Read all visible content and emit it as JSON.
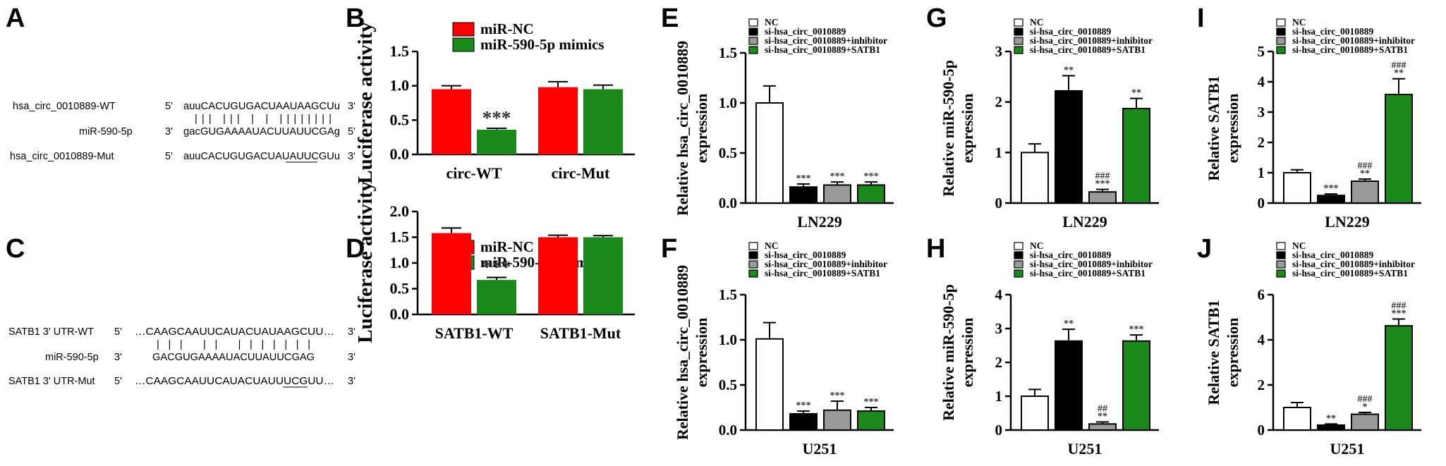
{
  "colors": {
    "red": "#ff0000",
    "green": "#1a8a1a",
    "black": "#000000",
    "gray": "#9a9a9a",
    "white": "#ffffff"
  },
  "panel_letters": [
    "A",
    "B",
    "C",
    "D",
    "E",
    "F",
    "G",
    "H",
    "I",
    "J"
  ],
  "seqA": {
    "rows": [
      {
        "label": "hsa_circ_0010889-WT",
        "p5": "5'",
        "seq": "auuCACUGUGACUAAUAAGCUu",
        "p3": "3'"
      },
      {
        "label": "",
        "p5": "",
        "seq": "|||  |||   |   |   ||||||||",
        "p3": ""
      },
      {
        "label": "miR-590-5p",
        "p5": "3'",
        "seq": "gacGUGAAAAUACUUAUUCGAg",
        "p3": "5'"
      },
      {
        "label": "hsa_circ_0010889-Mut",
        "p5": "5'",
        "seq": "auuCACUGUGACUAUAUUCGUu",
        "p3": "3'"
      }
    ]
  },
  "seqC": {
    "rows": [
      {
        "label": "SATB1 3' UTR-WT",
        "p5": "5'",
        "seq": "…CAAGCAAUUCAUACUAUAAGCUU…",
        "p3": "3'"
      },
      {
        "label": "",
        "p5": "",
        "seq": "|||   ||     |||||||",
        "p3": ""
      },
      {
        "label": "miR-590-5p",
        "p5": "3'",
        "seq": "GACGUGAAAAUACUUAUUCGAG",
        "p3": "5'"
      },
      {
        "label": "SATB1 3' UTR-Mut",
        "p5": "5'",
        "seq": "…CAAGCAAUUCAUACUAUUUCGUU…",
        "p3": "3'"
      }
    ]
  },
  "chart_data": [
    {
      "panel": "B",
      "type": "bar",
      "ylabel": "Luciferase activity",
      "categories": [
        "circ-WT",
        "circ-Mut"
      ],
      "ylim": [
        0,
        1.5
      ],
      "yticks": [
        "0.0",
        "0.5",
        "1.0",
        "1.5"
      ],
      "legend": [
        "miR-NC",
        "miR-590-5p mimics"
      ],
      "series": [
        {
          "name": "miR-NC",
          "values": [
            0.95,
            0.98
          ],
          "errors": [
            0.05,
            0.08
          ]
        },
        {
          "name": "miR-590-5p mimics",
          "values": [
            0.36,
            0.95
          ],
          "errors": [
            0.02,
            0.06
          ]
        }
      ],
      "annotations": [
        {
          "category": "circ-WT",
          "series": 1,
          "text": "***"
        }
      ]
    },
    {
      "panel": "D",
      "type": "bar",
      "ylabel": "Luciferase activity",
      "categories": [
        "SATB1-WT",
        "SATB1-Mut"
      ],
      "ylim": [
        0,
        2.0
      ],
      "yticks": [
        "0.0",
        "0.5",
        "1.0",
        "1.5",
        "2.0"
      ],
      "legend": [
        "miR-NC",
        "miR-590-5p mimics"
      ],
      "series": [
        {
          "name": "miR-NC",
          "values": [
            1.58,
            1.5
          ],
          "errors": [
            0.1,
            0.04
          ]
        },
        {
          "name": "miR-590-5p mimics",
          "values": [
            0.67,
            1.5
          ],
          "errors": [
            0.05,
            0.03
          ]
        }
      ],
      "annotations": [
        {
          "category": "SATB1-WT",
          "series": 1,
          "text": "***"
        }
      ]
    },
    {
      "panel": "E",
      "type": "bar",
      "ylabel_lines": [
        "Relative hsa_circ_0010889",
        "expression"
      ],
      "xlabel": "LN229",
      "ylim": [
        0,
        1.5
      ],
      "yticks": [
        "0.0",
        "0.5",
        "1.0",
        "1.5"
      ],
      "legend": [
        "NC",
        "si-hsa_circ_0010889",
        "si-hsa_circ_0010889+inhibitor",
        "si-hsa_circ_0010889+SATB1"
      ],
      "values": [
        1.0,
        0.16,
        0.18,
        0.18
      ],
      "errors": [
        0.17,
        0.03,
        0.03,
        0.03
      ],
      "annotations": [
        "",
        "***",
        "***",
        "***"
      ]
    },
    {
      "panel": "F",
      "type": "bar",
      "ylabel_lines": [
        "Relative hsa_circ_0010889",
        "expression"
      ],
      "xlabel": "U251",
      "ylim": [
        0,
        1.5
      ],
      "yticks": [
        "0.0",
        "0.5",
        "1.0",
        "1.5"
      ],
      "legend": [
        "NC",
        "si-hsa_circ_0010889",
        "si-hsa_circ_0010889+inhibitor",
        "si-hsa_circ_0010889+SATB1"
      ],
      "values": [
        1.01,
        0.18,
        0.22,
        0.21
      ],
      "errors": [
        0.18,
        0.03,
        0.1,
        0.04
      ],
      "annotations": [
        "",
        "***",
        "***",
        "***"
      ]
    },
    {
      "panel": "G",
      "type": "bar",
      "ylabel_lines": [
        "Relative miR-590-5p",
        "expression"
      ],
      "xlabel": "LN229",
      "ylim": [
        0,
        3
      ],
      "yticks": [
        "0",
        "1",
        "2",
        "3"
      ],
      "legend": [
        "NC",
        "si-hsa_circ_0010889",
        "si-hsa_circ_0010889+inhibitor",
        "si-hsa_circ_0010889+SATB1"
      ],
      "values": [
        1.0,
        2.22,
        0.22,
        1.87
      ],
      "errors": [
        0.17,
        0.3,
        0.05,
        0.2
      ],
      "annotations": [
        "",
        "**",
        "###\n***",
        "**"
      ]
    },
    {
      "panel": "H",
      "type": "bar",
      "ylabel_lines": [
        "Relative miR-590-5p",
        "expression"
      ],
      "xlabel": "U251",
      "ylim": [
        0,
        4
      ],
      "yticks": [
        "0",
        "1",
        "2",
        "3",
        "4"
      ],
      "legend": [
        "NC",
        "si-hsa_circ_0010889",
        "si-hsa_circ_0010889+inhibitor",
        "si-hsa_circ_0010889+SATB1"
      ],
      "values": [
        1.0,
        2.63,
        0.18,
        2.63
      ],
      "errors": [
        0.2,
        0.35,
        0.06,
        0.18
      ],
      "annotations": [
        "",
        "**",
        "##\n**",
        "***"
      ]
    },
    {
      "panel": "I",
      "type": "bar",
      "ylabel_lines": [
        "Relative SATB1",
        "expression"
      ],
      "xlabel": "LN229",
      "ylim": [
        0,
        5
      ],
      "yticks": [
        "0",
        "1",
        "2",
        "3",
        "4",
        "5"
      ],
      "legend": [
        "NC",
        "si-hsa_circ_0010889",
        "si-hsa_circ_0010889+inhibitor",
        "si-hsa_circ_0010889+SATB1"
      ],
      "values": [
        1.0,
        0.25,
        0.72,
        3.58
      ],
      "errors": [
        0.1,
        0.05,
        0.07,
        0.52
      ],
      "annotations": [
        "",
        "***",
        "###\n**",
        "###\n**"
      ]
    },
    {
      "panel": "J",
      "type": "bar",
      "ylabel_lines": [
        "Relative SATB1",
        "expression"
      ],
      "xlabel": "U251",
      "ylim": [
        0,
        6
      ],
      "yticks": [
        "0",
        "2",
        "4",
        "6"
      ],
      "legend": [
        "NC",
        "si-hsa_circ_0010889",
        "si-hsa_circ_0010889+inhibitor",
        "si-hsa_circ_0010889+SATB1"
      ],
      "values": [
        1.0,
        0.22,
        0.7,
        4.62
      ],
      "errors": [
        0.22,
        0.05,
        0.08,
        0.3
      ],
      "annotations": [
        "",
        "**",
        "###\n*",
        "###\n***"
      ]
    }
  ]
}
